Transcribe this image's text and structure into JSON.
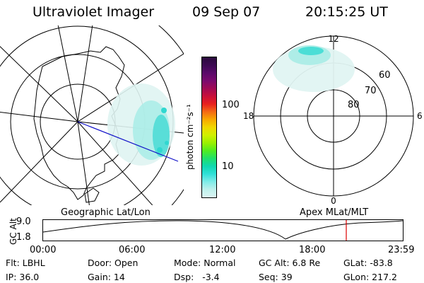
{
  "header": {
    "title": "Ultraviolet Imager",
    "date": "09 Sep 07",
    "time": "20:15:25 UT"
  },
  "left_map": {
    "caption": "Geographic Lat/Lon"
  },
  "colorbar": {
    "label": "photon cm⁻²s⁻¹",
    "ticks": [
      "100",
      "10"
    ],
    "colors": [
      "#2a0a3c",
      "#3c0a52",
      "#5a0a6a",
      "#7a0a6e",
      "#a00a55",
      "#c8103a",
      "#e8201e",
      "#f46a14",
      "#f8a800",
      "#f0d800",
      "#d0f000",
      "#9af000",
      "#50ec20",
      "#20e06a",
      "#10d8b0",
      "#30e0d8",
      "#80ece8",
      "#bff0ec",
      "#dcf6f4"
    ]
  },
  "right_map": {
    "caption": "Apex MLat/MLT",
    "mlt_labels": {
      "top": "12",
      "left": "18",
      "right": "6",
      "bottom": "0"
    },
    "lat_labels": [
      "60",
      "70",
      "80"
    ]
  },
  "timeline": {
    "y_title": "GC Alt",
    "y_ticks": [
      "9.0",
      "1.8"
    ],
    "x_ticks": [
      "00:00",
      "06:00",
      "12:00",
      "18:00",
      "23:59"
    ],
    "marker_color": "#dd0000"
  },
  "info": {
    "flt": "Flt: LBHL",
    "ip": "IP: 36.0",
    "door": "Door: Open",
    "gain": "Gain: 14",
    "mode": "Mode: Normal",
    "dsp": "Dsp:   -3.4",
    "gcalt": "GC Alt: 6.8 Re",
    "seq": "Seq: 39",
    "glat": "GLat: -83.8",
    "glon": "GLon: 217.2"
  }
}
